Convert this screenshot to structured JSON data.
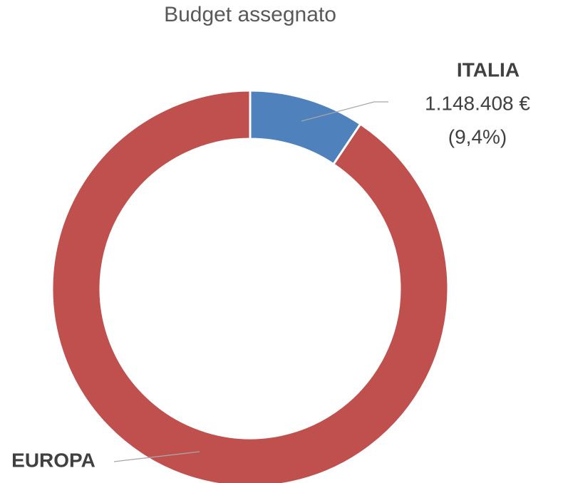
{
  "chart_data": {
    "type": "donut",
    "title": "Budget assegnato",
    "categories": [
      "ITALIA",
      "EUROPA"
    ],
    "values": [
      1148408,
      11070000
    ],
    "value_labels": [
      "1.148.408 €",
      null
    ],
    "percent_labels": [
      "(9,4%)",
      null
    ],
    "colors": [
      "#4f81bd",
      "#c0504d"
    ]
  }
}
